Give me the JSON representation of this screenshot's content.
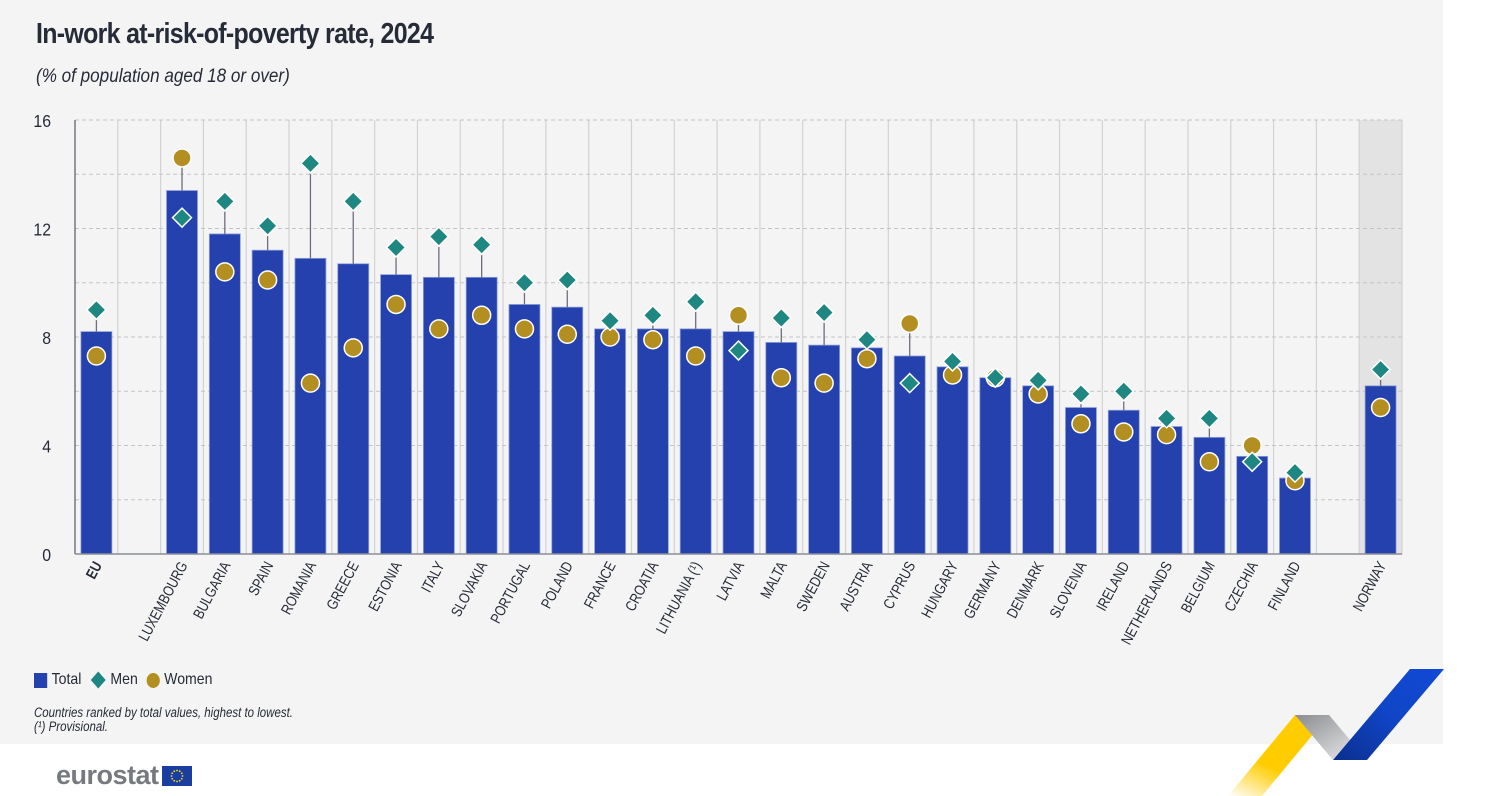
{
  "header": {
    "title": "In-work at-risk-of-poverty rate, 2024",
    "subtitle": "(% of population aged 18 or over)"
  },
  "legend": {
    "total": "Total",
    "men": "Men",
    "women": "Women"
  },
  "notes": {
    "line1": "Countries ranked by total values, highest to lowest.",
    "line2": "(¹) Provisional."
  },
  "logo": {
    "text": "eurostat"
  },
  "colors": {
    "total": "#2441ad",
    "men": "#1f8782",
    "women": "#b28f20",
    "panel": "#f4f4f4",
    "highlight_column": "#e3e3e3"
  },
  "chart_data": {
    "type": "bar",
    "title": "In-work at-risk-of-poverty rate, 2024",
    "subtitle": "(% of population aged 18 or over)",
    "xlabel": "",
    "ylabel": "",
    "ylim": [
      0,
      16
    ],
    "yticks": [
      0,
      4,
      8,
      12,
      16
    ],
    "grid": true,
    "legend_position": "bottom-left",
    "categories": [
      "EU",
      "",
      "LUXEMBOURG",
      "BULGARIA",
      "SPAIN",
      "ROMANIA",
      "GREECE",
      "ESTONIA",
      "ITALY",
      "SLOVAKIA",
      "PORTUGAL",
      "POLAND",
      "FRANCE",
      "CROATIA",
      "LITHUANIA (¹)",
      "LATVIA",
      "MALTA",
      "SWEDEN",
      "AUSTRIA",
      "CYPRUS",
      "HUNGARY",
      "GERMANY",
      "DENMARK",
      "SLOVENIA",
      "IRELAND",
      "NETHERLANDS",
      "BELGIUM",
      "CZECHIA",
      "FINLAND",
      "",
      "NORWAY"
    ],
    "bold_categories": [
      "EU"
    ],
    "highlighted_categories": [
      "NORWAY"
    ],
    "series": [
      {
        "name": "Total",
        "kind": "bar",
        "values": [
          8.2,
          null,
          13.4,
          11.8,
          11.2,
          10.9,
          10.7,
          10.3,
          10.2,
          10.2,
          9.2,
          9.1,
          8.3,
          8.3,
          8.3,
          8.2,
          7.8,
          7.7,
          7.6,
          7.3,
          6.9,
          6.5,
          6.2,
          5.4,
          5.3,
          4.7,
          4.3,
          3.6,
          2.8,
          null,
          6.2
        ]
      },
      {
        "name": "Men",
        "kind": "diamond",
        "values": [
          9.0,
          null,
          12.4,
          13.0,
          12.1,
          14.4,
          13.0,
          11.3,
          11.7,
          11.4,
          10.0,
          10.1,
          8.6,
          8.8,
          9.3,
          7.5,
          8.7,
          8.9,
          7.9,
          6.3,
          7.1,
          6.5,
          6.4,
          5.9,
          6.0,
          5.0,
          5.0,
          3.4,
          3.0,
          null,
          6.8
        ]
      },
      {
        "name": "Women",
        "kind": "circle",
        "values": [
          7.3,
          null,
          14.6,
          10.4,
          10.1,
          6.3,
          7.6,
          9.2,
          8.3,
          8.8,
          8.3,
          8.1,
          8.0,
          7.9,
          7.3,
          8.8,
          6.5,
          6.3,
          7.2,
          8.5,
          6.6,
          6.5,
          5.9,
          4.8,
          4.5,
          4.4,
          3.4,
          4.0,
          2.7,
          null,
          5.4
        ]
      }
    ],
    "notes": [
      "Countries ranked by total values, highest to lowest.",
      "(¹) Provisional."
    ]
  }
}
